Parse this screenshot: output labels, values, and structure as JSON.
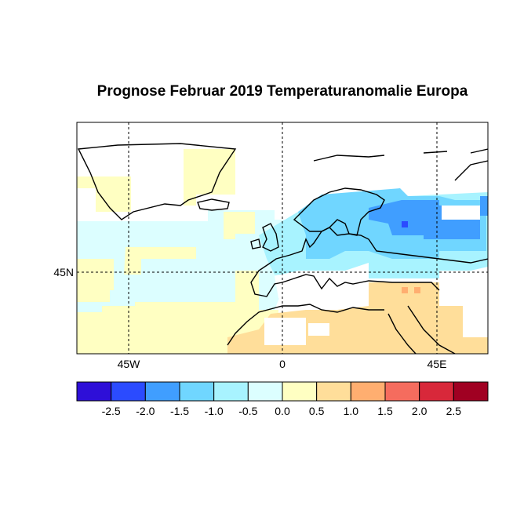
{
  "title": "Prognose Februar 2019 Temperaturanomalie Europa",
  "map": {
    "region": "Europe / North Atlantic",
    "projection": "lon-lat",
    "lon_range": [
      -60,
      60
    ],
    "lat_range": [
      21,
      89
    ],
    "grid_lines": "dashed",
    "x_axis_labels": [
      "45W",
      "0",
      "45E"
    ],
    "y_axis_labels": [
      "45N"
    ],
    "anomaly_summary": [
      {
        "area": "Western Russia",
        "class": "-1.5 to -1.0 (some -2.0 to -1.5)"
      },
      {
        "area": "Scandinavia / Baltic",
        "class": "-1.0 to -0.5"
      },
      {
        "area": "Central Europe",
        "class": "-0.5 to 0.0"
      },
      {
        "area": "North Atlantic",
        "class": "0.0 to -0.5"
      },
      {
        "area": "Subtropical Atlantic",
        "class": "0.0 to 0.5"
      },
      {
        "area": "North Africa / Middle East",
        "class": "0.5 to 1.0"
      },
      {
        "area": "Eastern Turkey",
        "class": "1.0 to 1.5"
      }
    ]
  },
  "colorbar": {
    "colors": [
      "#2E0FD8",
      "#2B4BFF",
      "#409EFF",
      "#70D6FF",
      "#A8F3FF",
      "#DCFEFF",
      "#FFFFC2",
      "#FFDE9A",
      "#FFAE70",
      "#F56C5E",
      "#D8283A",
      "#A00022"
    ],
    "tick_labels": [
      "-2.5",
      "-2.0",
      "-1.5",
      "-1.0",
      "-0.5",
      "0.0",
      "0.5",
      "1.0",
      "1.5",
      "2.0",
      "2.5"
    ]
  }
}
